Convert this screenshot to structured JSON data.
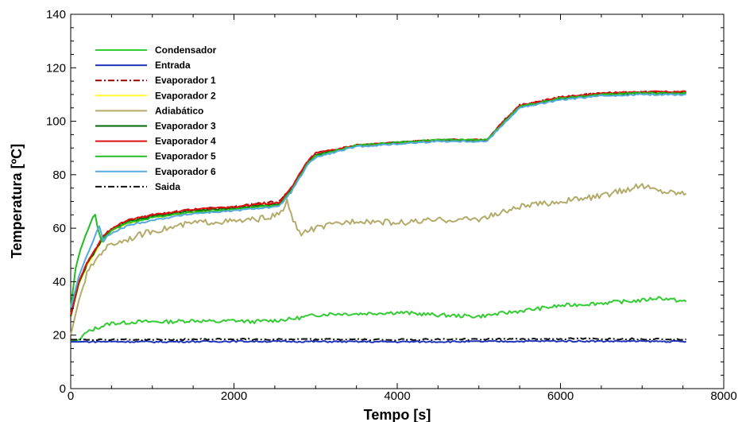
{
  "chart_data": {
    "type": "line",
    "xlabel": "Tempo [s]",
    "ylabel": "Temperatura [ºC]",
    "xlim": [
      0,
      8000
    ],
    "ylim": [
      0,
      140
    ],
    "xticks": [
      0,
      2000,
      4000,
      6000,
      8000
    ],
    "yticks": [
      0,
      20,
      40,
      60,
      80,
      100,
      120,
      140
    ],
    "xtick_labels": [
      "0",
      "2000",
      "4000",
      "6000",
      "8000"
    ],
    "ytick_labels": [
      "0",
      "20",
      "40",
      "60",
      "80",
      "100",
      "120",
      "140"
    ],
    "grid": false,
    "legend_position": "top-left",
    "series": [
      {
        "name": "Condensador",
        "color": "#33cc33",
        "dash": "solid",
        "x": [
          0,
          60,
          120,
          150,
          200,
          300,
          400,
          500,
          600,
          800,
          1000,
          1200,
          1500,
          1800,
          2000,
          2200,
          2500,
          2700,
          3000,
          3200,
          3500,
          4000,
          4500,
          5000,
          5500,
          6000,
          6500,
          7000,
          7200,
          7540
        ],
        "y": [
          18,
          18,
          18.5,
          20,
          21,
          22.5,
          23.5,
          24.5,
          24.5,
          25,
          25,
          25,
          25.5,
          25,
          25.5,
          25,
          25.5,
          26,
          27.5,
          28,
          28,
          28.5,
          27.5,
          27,
          29,
          31,
          32,
          33,
          34,
          32.5
        ]
      },
      {
        "name": "Entrada",
        "color": "#1f33bb",
        "dash": "solid",
        "x": [
          0,
          500,
          1000,
          2000,
          3000,
          4000,
          5000,
          6000,
          7000,
          7540
        ],
        "y": [
          17.5,
          17.6,
          17.5,
          17.7,
          17.6,
          17.5,
          17.6,
          17.8,
          17.7,
          17.6
        ]
      },
      {
        "name": "Evaporador 1",
        "color": "#990000",
        "dash": "dashdot",
        "x": [
          0,
          100,
          200,
          300,
          400,
          500,
          700,
          1000,
          1500,
          2000,
          2300,
          2550,
          2700,
          2800,
          2900,
          3000,
          3500,
          4000,
          4500,
          5000,
          5100,
          5300,
          5500,
          6000,
          6500,
          7000,
          7540
        ],
        "y": [
          27,
          40,
          47,
          52,
          57,
          60,
          63,
          65,
          67,
          68,
          69.5,
          70,
          75,
          80,
          85,
          88,
          91,
          92,
          93,
          93,
          93,
          100,
          106,
          109,
          110.5,
          111,
          111
        ]
      },
      {
        "name": "Evaporador 2",
        "color": "#ffff33",
        "dash": "solid",
        "x": [
          0,
          100,
          200,
          300,
          400,
          500,
          700,
          1000,
          1500,
          2000,
          2300,
          2550,
          2700,
          2800,
          2900,
          3000,
          3500,
          4000,
          4500,
          5000,
          5100,
          5300,
          5500,
          6000,
          6500,
          7000,
          7540
        ],
        "y": [
          27,
          39,
          46,
          51,
          56,
          59,
          62,
          64,
          66,
          67,
          68.5,
          69,
          74,
          79,
          84,
          87,
          91,
          92,
          93,
          93,
          93,
          99.5,
          105.5,
          108.5,
          110,
          110.5,
          110.5
        ]
      },
      {
        "name": "Adiabático",
        "color": "#b3ab6a",
        "dash": "solid",
        "x": [
          0,
          100,
          200,
          300,
          400,
          500,
          600,
          800,
          1000,
          1200,
          1500,
          1800,
          2000,
          2200,
          2400,
          2550,
          2600,
          2650,
          2700,
          2800,
          3000,
          3500,
          4000,
          4500,
          5000,
          5200,
          5500,
          6000,
          6500,
          7000,
          7200,
          7540
        ],
        "y": [
          20,
          33,
          43,
          48,
          52,
          54,
          55,
          57,
          59,
          60,
          62,
          62.5,
          62.5,
          63,
          64,
          65,
          67,
          70,
          65,
          58,
          60,
          63,
          62,
          63,
          63.5,
          65,
          68,
          70,
          72,
          76,
          74,
          73
        ]
      },
      {
        "name": "Evaporador 3",
        "color": "#006600",
        "dash": "solid",
        "x": [
          0,
          100,
          200,
          300,
          400,
          500,
          700,
          1000,
          1500,
          2000,
          2300,
          2550,
          2700,
          2800,
          2900,
          3000,
          3500,
          4000,
          4500,
          5000,
          5100,
          5300,
          5500,
          6000,
          6500,
          7000,
          7540
        ],
        "y": [
          27,
          39.5,
          46.5,
          51.5,
          56.5,
          59.5,
          62.5,
          64.5,
          66.5,
          67.5,
          68.5,
          69,
          74.5,
          79.5,
          84.5,
          87.5,
          91,
          92,
          93,
          93,
          93,
          99.5,
          105.5,
          108.5,
          110,
          110.5,
          110.5
        ]
      },
      {
        "name": "Evaporador 4",
        "color": "#dd1111",
        "dash": "solid",
        "x": [
          0,
          100,
          200,
          300,
          400,
          500,
          700,
          1000,
          1500,
          2000,
          2300,
          2550,
          2700,
          2800,
          2900,
          3000,
          3500,
          4000,
          4500,
          5000,
          5100,
          5300,
          5500,
          6000,
          6500,
          7000,
          7540
        ],
        "y": [
          27.5,
          40,
          47,
          52,
          57,
          60,
          63,
          65,
          67,
          68,
          69,
          69.5,
          75,
          80,
          85,
          88,
          91,
          92,
          93,
          93,
          93,
          100,
          106,
          109,
          110.5,
          111,
          111
        ]
      },
      {
        "name": "Evaporador 5",
        "color": "#22bb22",
        "dash": "solid",
        "x": [
          0,
          60,
          120,
          180,
          240,
          270,
          300,
          330,
          380,
          420,
          500,
          700,
          1000,
          1500,
          2000,
          2300,
          2550,
          2700,
          2800,
          2900,
          3000,
          3500,
          4000,
          4500,
          5000,
          5100,
          5300,
          5500,
          6000,
          6500,
          7000,
          7540
        ],
        "y": [
          30,
          45,
          52,
          57,
          62,
          64,
          65,
          60,
          55,
          57,
          59,
          62,
          64,
          66,
          67,
          68,
          68.5,
          74,
          79,
          84,
          87,
          91,
          92,
          93,
          93,
          93,
          99.5,
          105.5,
          108.5,
          110,
          110.5,
          110.5
        ]
      },
      {
        "name": "Evaporador 6",
        "color": "#55aadd",
        "dash": "solid",
        "x": [
          0,
          100,
          200,
          300,
          350,
          400,
          450,
          500,
          700,
          1000,
          1500,
          2000,
          2300,
          2550,
          2700,
          2800,
          2900,
          3000,
          3500,
          4000,
          4500,
          5000,
          5100,
          5300,
          5500,
          6000,
          6500,
          7000,
          7540
        ],
        "y": [
          30,
          42,
          50,
          57,
          61,
          55,
          57,
          58,
          61,
          63,
          65.5,
          66.5,
          67.5,
          68,
          73.5,
          78.5,
          83.5,
          86.5,
          90.5,
          91.5,
          92.5,
          92.5,
          92.5,
          99,
          105,
          108,
          109.5,
          110,
          110
        ]
      },
      {
        "name": "Saida",
        "color": "#111111",
        "dash": "dashdot",
        "x": [
          0,
          500,
          1000,
          2000,
          3000,
          4000,
          5000,
          6000,
          7000,
          7540
        ],
        "y": [
          18.3,
          18.4,
          18.3,
          18.5,
          18.4,
          18.3,
          18.5,
          18.6,
          18.6,
          18.5
        ]
      }
    ]
  }
}
